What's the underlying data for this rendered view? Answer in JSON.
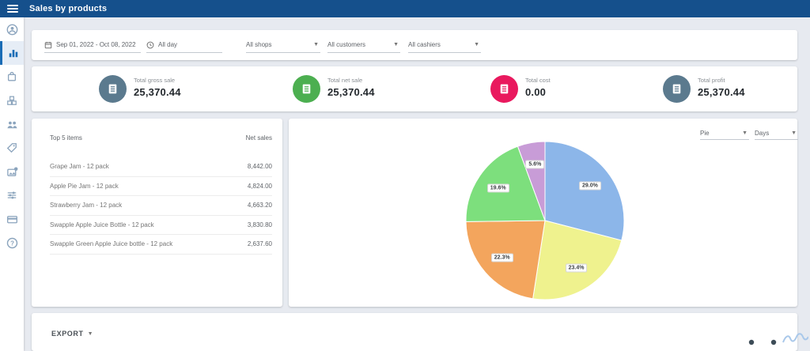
{
  "header": {
    "title": "Sales by products"
  },
  "filters": {
    "date_range": "Sep 01, 2022 - Oct 08, 2022",
    "time": "All day",
    "shops": "All shops",
    "customers": "All customers",
    "cashiers": "All cashiers"
  },
  "stats": [
    {
      "label": "Total gross sale",
      "value": "25,370.44",
      "color": "#5b7a8e"
    },
    {
      "label": "Total net sale",
      "value": "25,370.44",
      "color": "#4caf50"
    },
    {
      "label": "Total cost",
      "value": "0.00",
      "color": "#e9195e"
    },
    {
      "label": "Total profit",
      "value": "25,370.44",
      "color": "#5b7a8e"
    }
  ],
  "top_items": {
    "title": "Top 5 items",
    "value_header": "Net sales",
    "rows": [
      {
        "name": "Grape Jam - 12 pack",
        "value": "8,442.00"
      },
      {
        "name": "Apple Pie Jam - 12 pack",
        "value": "4,824.00"
      },
      {
        "name": "Strawberry Jam - 12 pack",
        "value": "4,663.20"
      },
      {
        "name": "Swapple Apple Juice Bottle - 12 pack",
        "value": "3,830.80"
      },
      {
        "name": "Swapple Green Apple Juice bottle - 12 pack",
        "value": "2,637.60"
      }
    ]
  },
  "chart_controls": {
    "chart_type": "Pie",
    "period": "Days"
  },
  "chart_data": {
    "type": "pie",
    "labels": [
      "29.0%",
      "23.4%",
      "22.3%",
      "19.6%",
      "5.6%"
    ],
    "values": [
      29.0,
      23.4,
      22.3,
      19.6,
      5.6
    ],
    "colors": [
      "#8cb6e9",
      "#eff28e",
      "#f3a55d",
      "#7ddf7d",
      "#c89cd7"
    ],
    "start_angle": "top",
    "direction": "clockwise",
    "legend": "none",
    "title": ""
  },
  "export": {
    "label": "EXPORT"
  },
  "sidebar": {
    "items": [
      {
        "icon": "account-icon"
      },
      {
        "icon": "reports-icon",
        "active": true
      },
      {
        "icon": "items-icon"
      },
      {
        "icon": "inventory-icon"
      },
      {
        "icon": "employees-icon"
      },
      {
        "icon": "customers-icon"
      },
      {
        "icon": "integrations-icon"
      },
      {
        "icon": "settings-icon"
      },
      {
        "icon": "billing-icon"
      },
      {
        "icon": "help-icon"
      }
    ]
  },
  "colors": {
    "appbar": "#15508c",
    "background": "#e7eaf0",
    "active_item": "#1a6cb5"
  }
}
